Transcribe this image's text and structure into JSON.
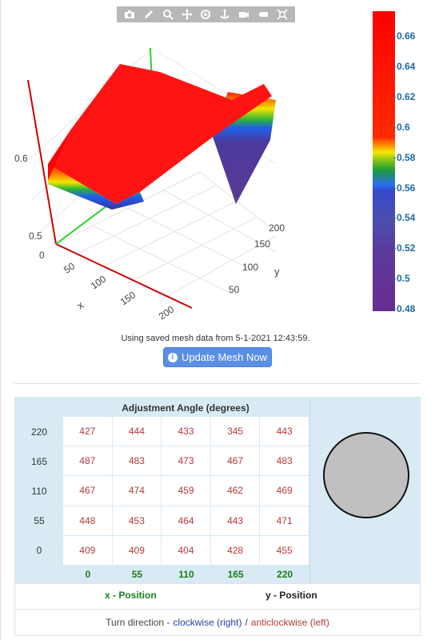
{
  "modebar": {
    "buttons": [
      "camera-icon",
      "pencil-icon",
      "zoom-icon",
      "pan-icon",
      "orbit-icon",
      "turntable-icon",
      "reset-camera-icon",
      "hover-icon",
      "spikelines-icon"
    ]
  },
  "plot": {
    "z_ticks": [
      "0.6",
      "0.5",
      "0"
    ],
    "x_ticks": [
      "50",
      "100",
      "150",
      "200"
    ],
    "y_ticks": [
      "50",
      "100",
      "150",
      "200"
    ],
    "x_title": "x",
    "y_title": "y"
  },
  "colorbar": {
    "ticks": [
      "0.66",
      "0.64",
      "0.62",
      "0.6",
      "0.58",
      "0.56",
      "0.54",
      "0.52",
      "0.5",
      "0.48"
    ]
  },
  "status": {
    "message": "Using saved mesh data from 5-1-2021 12:43:59.",
    "update_button": "Update Mesh Now"
  },
  "table": {
    "title": "Adjustment Angle (degrees)",
    "row_labels": [
      "220",
      "165",
      "110",
      "55",
      "0"
    ],
    "col_labels": [
      "0",
      "55",
      "110",
      "165",
      "220"
    ],
    "rows": [
      [
        "427",
        "444",
        "433",
        "345",
        "443"
      ],
      [
        "487",
        "483",
        "473",
        "467",
        "483"
      ],
      [
        "467",
        "474",
        "459",
        "462",
        "469"
      ],
      [
        "448",
        "453",
        "464",
        "443",
        "471"
      ],
      [
        "409",
        "409",
        "404",
        "428",
        "455"
      ]
    ],
    "x_position_label": "x - Position",
    "y_position_label": "y - Position"
  },
  "turn": {
    "prefix": "Turn direction -",
    "clockwise": "clockwise (right)",
    "separator": "/",
    "anticlockwise": "anticlockwise (left)"
  },
  "colors": {
    "accent_blue": "#5b8fe6",
    "value_red": "#b53a3a",
    "label_green": "#1a7f1a",
    "panel_blue": "#d8ebf5"
  }
}
